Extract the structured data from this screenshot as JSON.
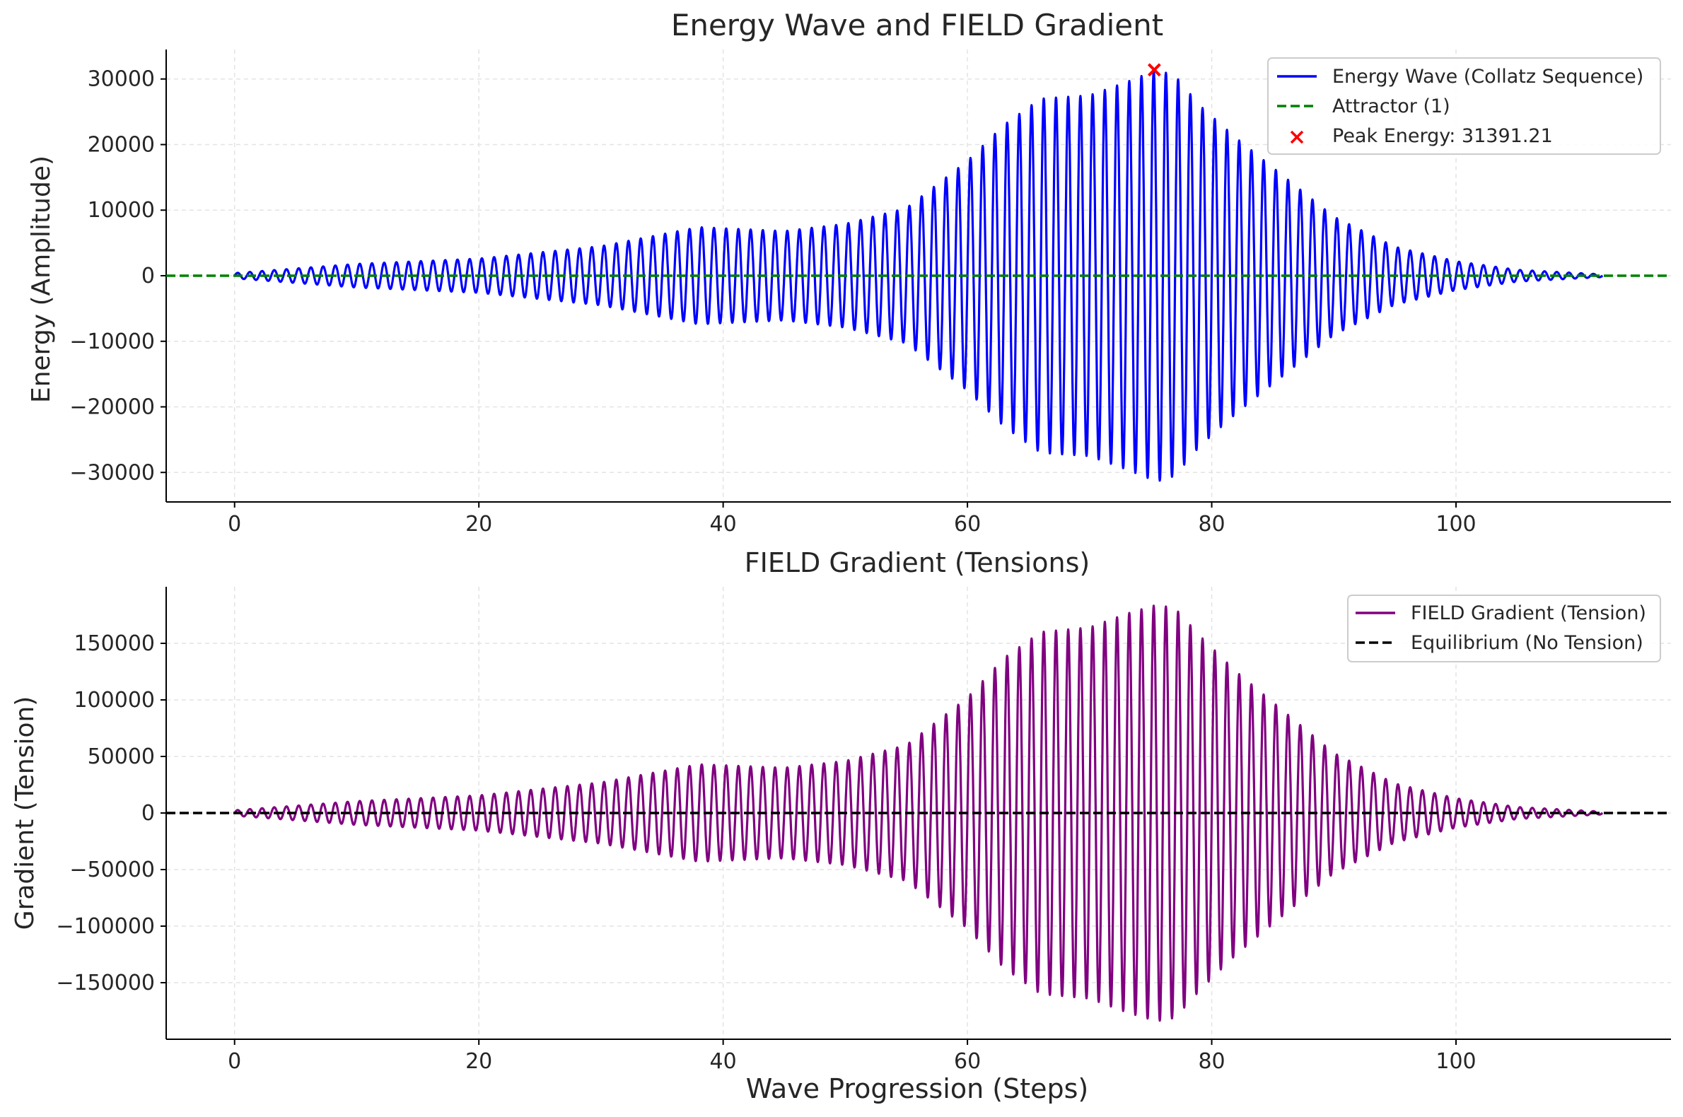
{
  "chart_data": [
    {
      "type": "line",
      "title": "Energy Wave and FIELD Gradient",
      "xlabel": "",
      "ylabel": "Energy (Amplitude)",
      "xlim": [
        -5.6,
        117.6
      ],
      "ylim": [
        -34500,
        34500
      ],
      "xticks": [
        0,
        20,
        40,
        60,
        80,
        100
      ],
      "yticks": [
        -30000,
        -20000,
        -10000,
        0,
        10000,
        20000,
        30000
      ],
      "grid": true,
      "legend_position": "top-right",
      "oscillation": {
        "x_start": 0,
        "x_end": 112,
        "cycles_per_step": 1
      },
      "envelope": {
        "x": [
          0,
          10,
          20,
          30,
          38,
          45,
          50,
          55,
          60,
          63,
          66,
          70,
          73,
          75.5,
          77,
          79,
          82,
          86,
          90,
          95,
          100,
          105,
          112
        ],
        "y": [
          400,
          1800,
          2600,
          4500,
          7400,
          6800,
          7900,
          10300,
          17500,
          23000,
          27000,
          27500,
          29500,
          31391,
          30500,
          26000,
          21000,
          15000,
          9000,
          4400,
          2200,
          900,
          200
        ]
      },
      "series": [
        {
          "name": "Energy Wave (Collatz Sequence)",
          "color": "#0000ff",
          "style": "solid"
        },
        {
          "name": "Attractor (1)",
          "color": "#008000",
          "style": "dashed",
          "y": 1
        }
      ],
      "peak": {
        "label": "Peak Energy: 31391.21",
        "x": 75.3,
        "y": 31391.21,
        "color": "#ff0000"
      }
    },
    {
      "type": "line",
      "title": "FIELD Gradient (Tensions)",
      "xlabel": "Wave Progression (Steps)",
      "ylabel": "Gradient (Tension)",
      "xlim": [
        -5.6,
        117.6
      ],
      "ylim": [
        -200000,
        200000
      ],
      "xticks": [
        0,
        20,
        40,
        60,
        80,
        100
      ],
      "yticks": [
        -150000,
        -100000,
        -50000,
        0,
        50000,
        100000,
        150000
      ],
      "grid": true,
      "legend_position": "top-right",
      "oscillation": {
        "x_start": 0,
        "x_end": 112,
        "cycles_per_step": 1
      },
      "envelope": {
        "x": [
          0,
          10,
          20,
          30,
          38,
          45,
          50,
          55,
          60,
          63,
          66,
          70,
          73,
          75.5,
          77,
          79,
          82,
          86,
          90,
          95,
          100,
          105,
          112
        ],
        "y": [
          2400,
          10500,
          15500,
          27000,
          43000,
          40000,
          46000,
          60000,
          102000,
          137000,
          160000,
          164000,
          176000,
          184000,
          181000,
          157000,
          125000,
          89000,
          53000,
          26000,
          13000,
          5300,
          1200
        ]
      },
      "series": [
        {
          "name": "FIELD Gradient (Tension)",
          "color": "#800080",
          "style": "solid"
        },
        {
          "name": "Equilibrium (No Tension)",
          "color": "#000000",
          "style": "dashed",
          "y": 0
        }
      ]
    }
  ]
}
